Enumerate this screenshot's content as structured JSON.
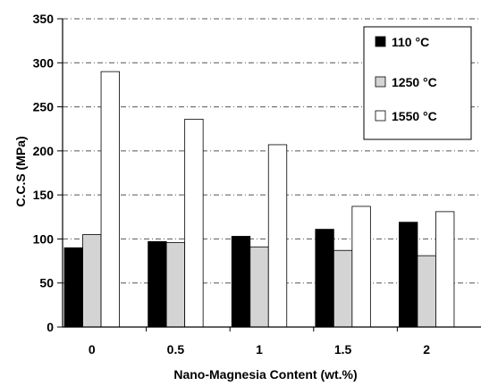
{
  "chart_data": {
    "type": "bar",
    "categories": [
      "0",
      "0.5",
      "1",
      "1.5",
      "2"
    ],
    "series": [
      {
        "name": "110 °C",
        "values": [
          90,
          97,
          103,
          111,
          119
        ],
        "color": "#000000"
      },
      {
        "name": "1250 °C",
        "values": [
          105,
          96,
          91,
          87,
          81
        ],
        "color": "#d4d4d4"
      },
      {
        "name": "1550 °C",
        "values": [
          290,
          236,
          207,
          137,
          131
        ],
        "color": "#ffffff"
      }
    ],
    "xlabel": "Nano-Magnesia Content (wt.%)",
    "ylabel": "C.C.S (MPa)",
    "ylim": [
      0,
      350
    ],
    "yticks": [
      0,
      50,
      100,
      150,
      200,
      250,
      300,
      350
    ],
    "grid": true,
    "legend_position": "top-right"
  }
}
